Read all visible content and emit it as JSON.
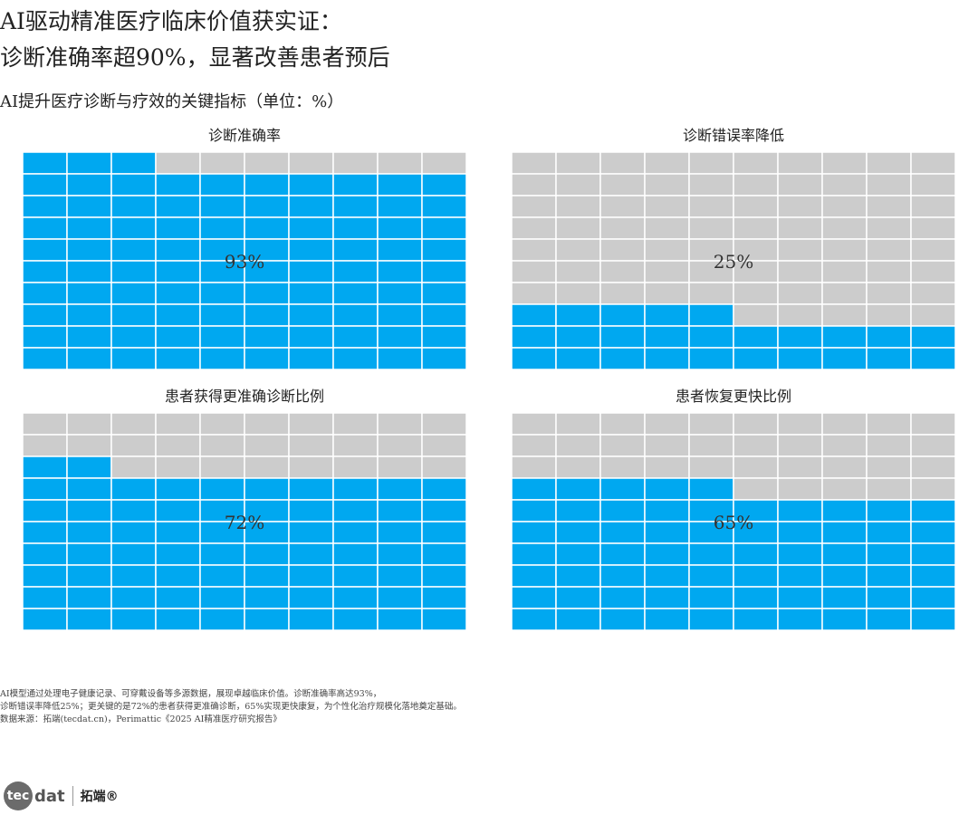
{
  "title_lines": [
    "AI驱动精准医疗临床价值获实证：",
    "诊断准确率超90%，显著改善患者预后"
  ],
  "subtitle": "AI提升医疗诊断与疗效的关键指标（单位：%）",
  "colors": {
    "filled": "#00A8F0",
    "empty": "#CCCCCC",
    "grid_line": "#FFFFFF"
  },
  "chart_data": [
    {
      "type": "waffle",
      "title": "诊断准确率",
      "value": 93,
      "label": "93%",
      "max": 100
    },
    {
      "type": "waffle",
      "title": "诊断错误率降低",
      "value": 25,
      "label": "25%",
      "max": 100
    },
    {
      "type": "waffle",
      "title": "患者获得更准确诊断比例",
      "value": 72,
      "label": "72%",
      "max": 100
    },
    {
      "type": "waffle",
      "title": "患者恢复更快比例",
      "value": 65,
      "label": "65%",
      "max": 100
    }
  ],
  "footnote": [
    "AI模型通过处理电子健康记录、可穿戴设备等多源数据，展现卓越临床价值。诊断准确率高达93%，",
    "诊断错误率降低25%；更关键的是72%的患者获得更准确诊断，65%实现更快康复，为个性化治疗规模化落地奠定基础。",
    "数据来源：拓端(tecdat.cn)，Perimattic《2025 AI精准医疗研究报告》"
  ],
  "logo": {
    "tec": "tec",
    "dat": "dat",
    "cn": "拓端®"
  }
}
